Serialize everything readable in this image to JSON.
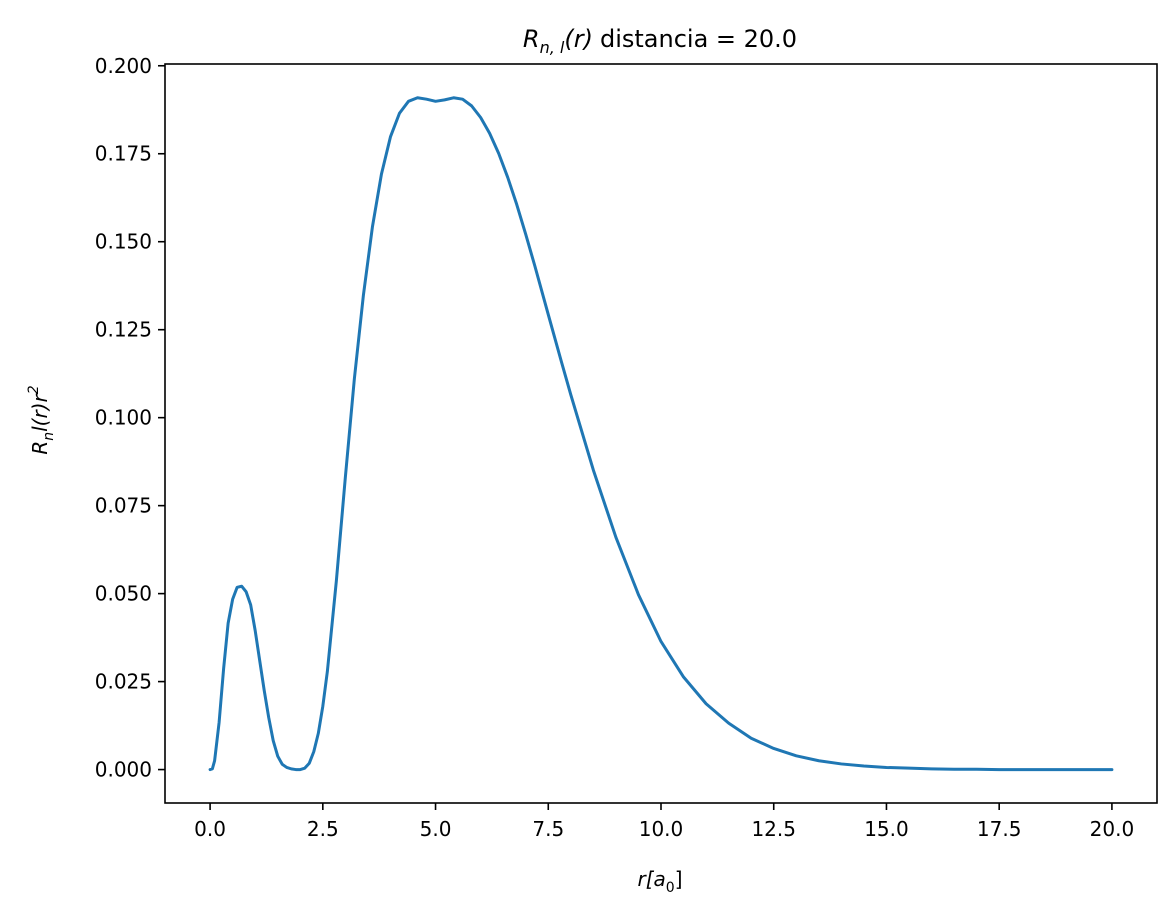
{
  "chart_data": {
    "type": "line",
    "title": "distancia = 20.0",
    "title_math": "R",
    "title_sub": "n, l",
    "title_arg": "(r)",
    "xlabel_main": "r[a",
    "xlabel_sub": "0",
    "xlabel_end": "]",
    "ylabel_main": "R",
    "ylabel_sub": "n",
    "ylabel_mid": "l(r)r",
    "ylabel_sup": "2",
    "xlim": [
      -1.0,
      21.0
    ],
    "ylim": [
      -0.0095,
      0.2005
    ],
    "grid": false,
    "line_color": "#1f77b4",
    "x_ticks": [
      0.0,
      2.5,
      5.0,
      7.5,
      10.0,
      12.5,
      15.0,
      17.5,
      20.0
    ],
    "x_tick_labels": [
      "0.0",
      "2.5",
      "5.0",
      "7.5",
      "10.0",
      "12.5",
      "15.0",
      "17.5",
      "20.0"
    ],
    "y_ticks": [
      0.0,
      0.025,
      0.05,
      0.075,
      0.1,
      0.125,
      0.15,
      0.175,
      0.2
    ],
    "y_tick_labels": [
      "0.000",
      "0.025",
      "0.050",
      "0.075",
      "0.100",
      "0.125",
      "0.150",
      "0.175",
      "0.200"
    ],
    "series": [
      {
        "x": [
          0.0,
          0.05,
          0.1,
          0.2,
          0.3,
          0.4,
          0.5,
          0.6,
          0.7,
          0.8,
          0.9,
          1.0,
          1.1,
          1.2,
          1.3,
          1.4,
          1.5,
          1.6,
          1.7,
          1.8,
          1.9,
          2.0,
          2.1,
          2.2,
          2.3,
          2.4,
          2.5,
          2.6,
          2.8,
          3.0,
          3.2,
          3.4,
          3.6,
          3.8,
          4.0,
          4.2,
          4.4,
          4.6,
          4.8,
          5.0,
          5.2,
          5.4,
          5.6,
          5.8,
          6.0,
          6.2,
          6.4,
          6.6,
          6.8,
          7.0,
          7.2,
          7.5,
          7.8,
          8.0,
          8.5,
          9.0,
          9.5,
          10.0,
          10.5,
          11.0,
          11.5,
          12.0,
          12.5,
          13.0,
          13.5,
          14.0,
          14.5,
          15.0,
          15.5,
          16.0,
          16.5,
          17.0,
          17.5,
          18.0,
          18.5,
          19.0,
          19.5,
          20.0
        ],
        "y": [
          0.0,
          0.0002,
          0.0025,
          0.0134,
          0.0287,
          0.0416,
          0.0484,
          0.0518,
          0.0521,
          0.0505,
          0.0468,
          0.0395,
          0.031,
          0.0225,
          0.0148,
          0.0082,
          0.0038,
          0.0015,
          0.0006,
          0.0002,
          0.0,
          0.0,
          0.0004,
          0.0018,
          0.0051,
          0.0103,
          0.018,
          0.0278,
          0.0536,
          0.0831,
          0.1111,
          0.1348,
          0.1542,
          0.1692,
          0.1798,
          0.1865,
          0.1899,
          0.1909,
          0.1905,
          0.1899,
          0.1903,
          0.1909,
          0.1905,
          0.1886,
          0.1853,
          0.1808,
          0.1751,
          0.1683,
          0.1606,
          0.1521,
          0.1432,
          0.1293,
          0.1155,
          0.1065,
          0.0851,
          0.066,
          0.0497,
          0.0364,
          0.0263,
          0.0187,
          0.0132,
          0.0089,
          0.006,
          0.0039,
          0.0025,
          0.0016,
          0.001,
          0.0006,
          0.0004,
          0.0002,
          0.0001,
          0.0001,
          0.0,
          0.0,
          0.0,
          0.0,
          0.0,
          0.0
        ]
      }
    ]
  }
}
